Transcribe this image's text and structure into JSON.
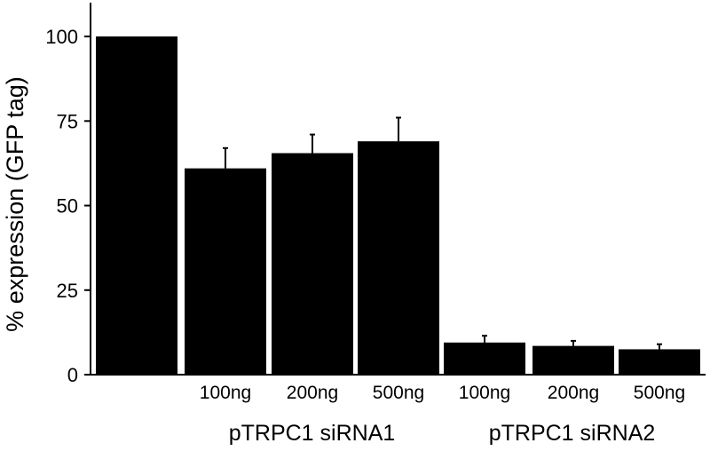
{
  "chart_data": {
    "type": "bar",
    "categories": [
      "",
      "100ng",
      "200ng",
      "500ng",
      "100ng",
      "200ng",
      "500ng"
    ],
    "values": [
      100,
      61,
      65.5,
      69,
      9.5,
      8.5,
      7.5
    ],
    "error_bars": [
      0,
      6,
      5.5,
      7,
      2,
      1.5,
      1.5
    ],
    "groups": [
      {
        "label": "pTRPC1 siRNA1",
        "categories": [
          1,
          2,
          3
        ]
      },
      {
        "label": "pTRPC1 siRNA2",
        "categories": [
          4,
          5,
          6
        ]
      }
    ],
    "title": "",
    "xlabel": "",
    "ylabel": "% expression (GFP tag)",
    "ylim": [
      0,
      110
    ],
    "yticks": [
      0,
      25,
      50,
      75,
      100
    ],
    "grid": false,
    "colors": {
      "bar": "#000000",
      "background": "#ffffff"
    }
  }
}
